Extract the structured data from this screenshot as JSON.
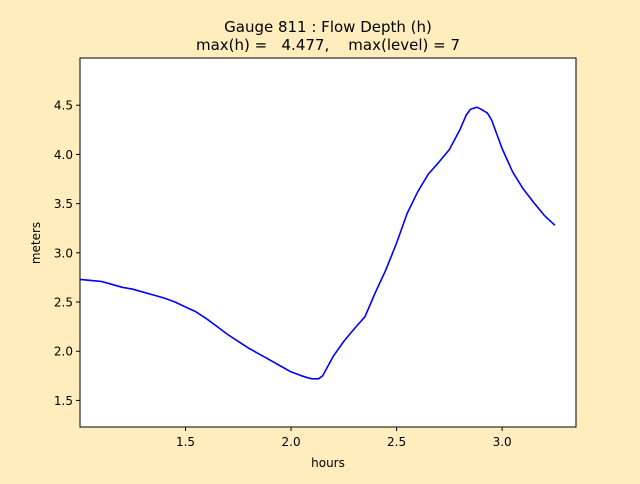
{
  "chart_data": {
    "type": "line",
    "title_line1": "Gauge 811 : Flow Depth (h)",
    "title_line2": "max(h) =   4.477,    max(level) = 7",
    "xlabel": "hours",
    "ylabel": "meters",
    "xlim": [
      1.0,
      3.35
    ],
    "ylim": [
      1.23,
      4.98
    ],
    "xticks": [
      1.5,
      2.0,
      2.5,
      3.0
    ],
    "xtick_labels": [
      "1.5",
      "2.0",
      "2.5",
      "3.0"
    ],
    "yticks": [
      1.5,
      2.0,
      2.5,
      3.0,
      3.5,
      4.0,
      4.5
    ],
    "ytick_labels": [
      "1.5",
      "2.0",
      "2.5",
      "3.0",
      "3.5",
      "4.0",
      "4.5"
    ],
    "grid": false,
    "colors": {
      "background": "#ffedbd",
      "axes": "#ffffff",
      "line": "#0000ff"
    },
    "series": [
      {
        "x": [
          1.0,
          1.05,
          1.1,
          1.15,
          1.2,
          1.25,
          1.3,
          1.35,
          1.4,
          1.45,
          1.5,
          1.55,
          1.6,
          1.65,
          1.7,
          1.75,
          1.8,
          1.85,
          1.9,
          1.95,
          2.0,
          2.05,
          2.08,
          2.1,
          2.13,
          2.15,
          2.17,
          2.2,
          2.25,
          2.3,
          2.35,
          2.38,
          2.4,
          2.45,
          2.5,
          2.55,
          2.6,
          2.65,
          2.7,
          2.75,
          2.8,
          2.83,
          2.85,
          2.88,
          2.9,
          2.93,
          2.95,
          3.0,
          3.05,
          3.1,
          3.15,
          3.2,
          3.25
        ],
        "y": [
          2.73,
          2.72,
          2.71,
          2.68,
          2.65,
          2.63,
          2.6,
          2.57,
          2.54,
          2.5,
          2.45,
          2.4,
          2.33,
          2.25,
          2.17,
          2.1,
          2.03,
          1.97,
          1.91,
          1.85,
          1.79,
          1.75,
          1.73,
          1.72,
          1.72,
          1.75,
          1.83,
          1.95,
          2.1,
          2.23,
          2.35,
          2.5,
          2.6,
          2.83,
          3.1,
          3.4,
          3.62,
          3.8,
          3.92,
          4.05,
          4.25,
          4.4,
          4.46,
          4.48,
          4.46,
          4.42,
          4.35,
          4.06,
          3.82,
          3.65,
          3.51,
          3.38,
          3.28
        ]
      }
    ]
  }
}
